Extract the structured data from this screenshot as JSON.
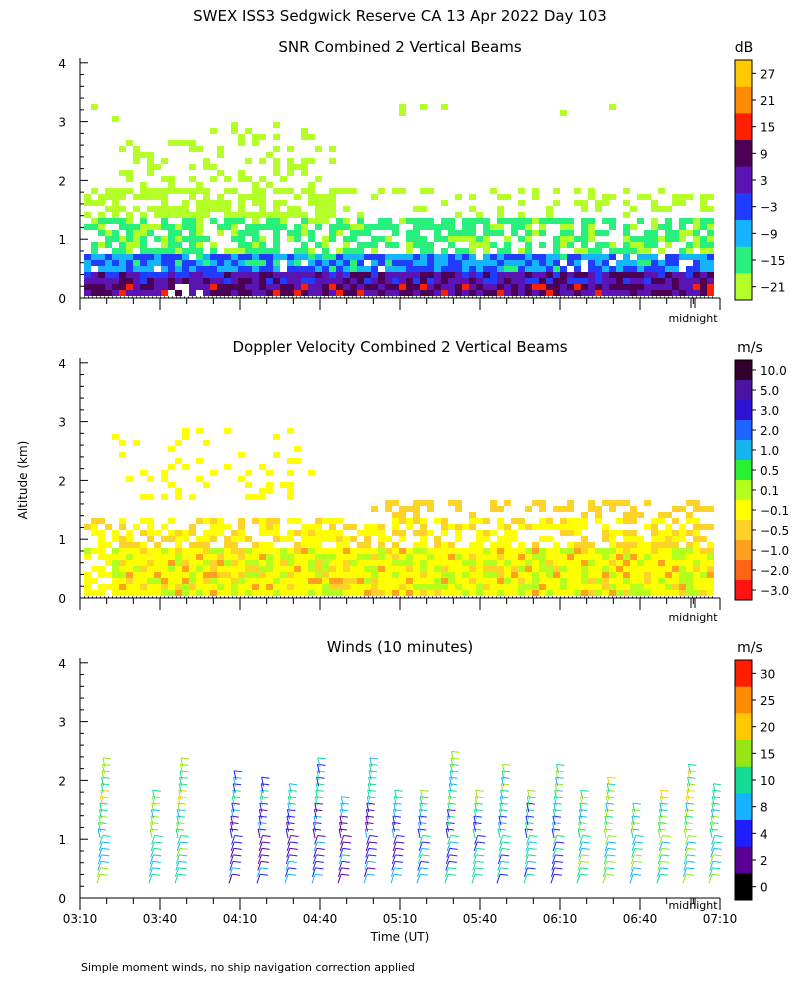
{
  "figure_title": "SWEX ISS3 Sedgwick Reserve CA  13 Apr 2022 Day 103",
  "y_axis_label": "Altitude (km)",
  "x_axis_label": "Time (UT)",
  "footnote": "Simple moment winds, no ship navigation correction applied",
  "x_marker_label": "midnight",
  "chart_data": [
    {
      "type": "heatmap",
      "title": "SNR Combined 2 Vertical Beams",
      "ylabel": "Altitude (km)",
      "ylim": [
        0,
        4
      ],
      "y_ticks": [
        "0",
        "1",
        "2",
        "3",
        "4"
      ],
      "colorbar": {
        "unit": "dB",
        "labels": [
          "27",
          "21",
          "15",
          "9",
          "3",
          "−3",
          "−9",
          "−15",
          "−21"
        ],
        "colors": [
          "#ffc800",
          "#ff8c00",
          "#ff2000",
          "#4b0055",
          "#5a14b4",
          "#1f3cff",
          "#14b4ff",
          "#28f07d",
          "#b4ff28"
        ]
      }
    },
    {
      "type": "heatmap",
      "title": "Doppler Velocity Combined 2 Vertical Beams",
      "ylabel": "Altitude (km)",
      "ylim": [
        0,
        4
      ],
      "y_ticks": [
        "0",
        "1",
        "2",
        "3",
        "4"
      ],
      "colorbar": {
        "unit": "m/s",
        "labels": [
          "10.0",
          "5.0",
          "3.0",
          "2.0",
          "1.0",
          "0.5",
          "0.1",
          "−0.1",
          "−0.5",
          "−1.0",
          "−2.0",
          "−3.0"
        ],
        "colors": [
          "#32002d",
          "#4b14a0",
          "#2d14d2",
          "#1e64ff",
          "#14b4f0",
          "#28f032",
          "#b4ff1e",
          "#ffff00",
          "#ffd228",
          "#ffa01e",
          "#ff6414",
          "#ff1414"
        ]
      }
    },
    {
      "type": "scatter",
      "title": "Winds (10 minutes)",
      "ylabel": "Altitude (km)",
      "xlabel": "Time (UT)",
      "ylim": [
        0,
        4
      ],
      "y_ticks": [
        "0",
        "1",
        "2",
        "3",
        "4"
      ],
      "x_ticks": [
        "03:10",
        "03:40",
        "04:10",
        "04:40",
        "05:10",
        "05:40",
        "06:10",
        "06:40",
        "07:10"
      ],
      "colorbar": {
        "unit": "m/s",
        "labels": [
          "30",
          "25",
          "20",
          "15",
          "10",
          "8",
          "4",
          "2",
          "0"
        ],
        "colors": [
          "#ff1e00",
          "#ff8c00",
          "#ffc800",
          "#96e614",
          "#14dc96",
          "#14b4ff",
          "#1e1eff",
          "#5a0096",
          "#000000"
        ]
      }
    }
  ]
}
